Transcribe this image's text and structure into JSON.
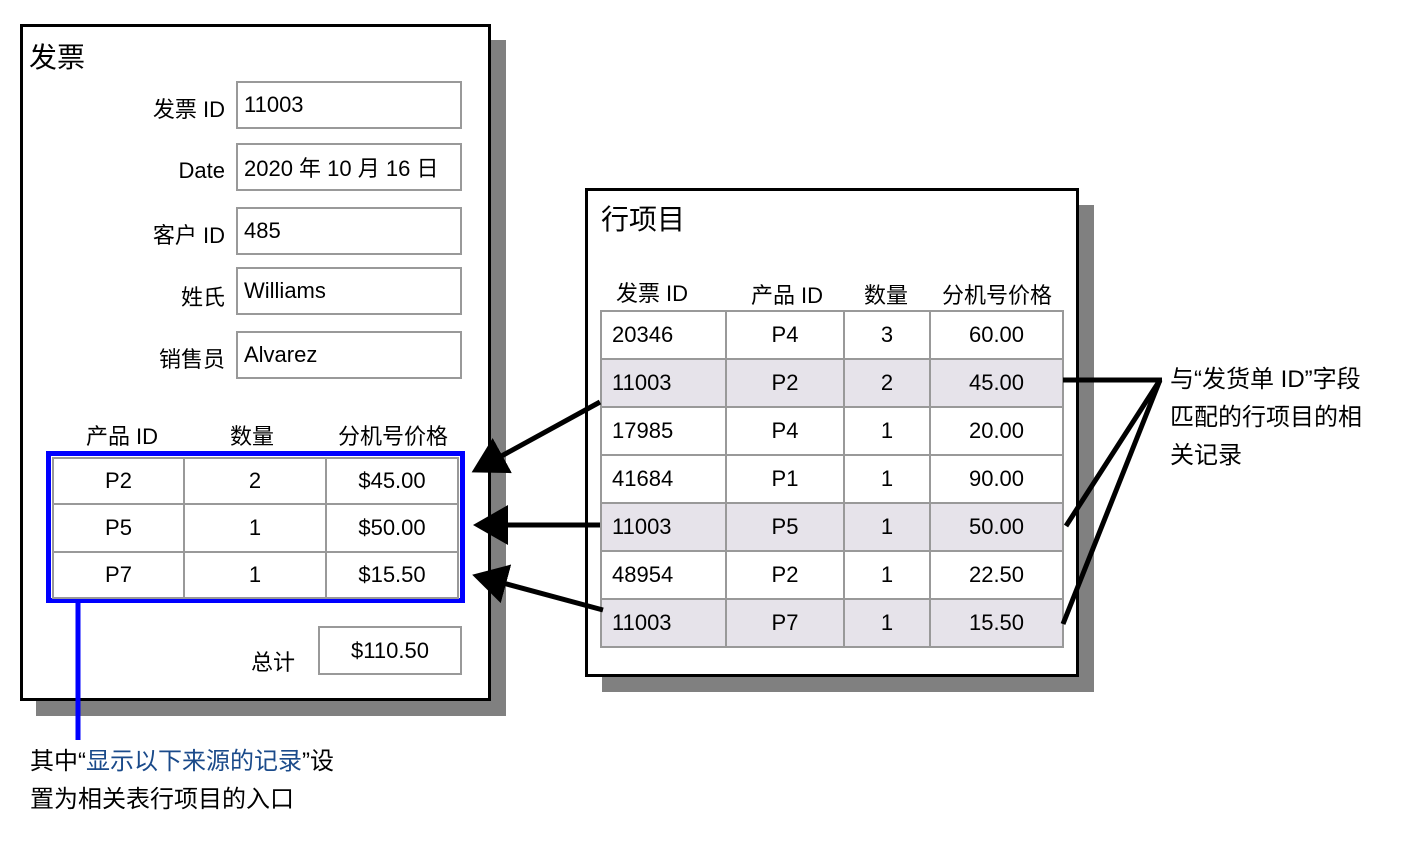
{
  "invoice": {
    "title": "发票",
    "fields": [
      {
        "label": "发票 ID",
        "value": "11003"
      },
      {
        "label": "Date",
        "value": "2020 年 10 月 16 日"
      },
      {
        "label": "客户 ID",
        "value": "485"
      },
      {
        "label": "姓氏",
        "value": "Williams"
      },
      {
        "label": "销售员",
        "value": "Alvarez"
      }
    ],
    "portal_headers": [
      "产品 ID",
      "数量",
      "分机号价格"
    ],
    "portal_rows": [
      [
        "P2",
        "2",
        "$45.00"
      ],
      [
        "P5",
        "1",
        "$50.00"
      ],
      [
        "P7",
        "1",
        "$15.50"
      ]
    ],
    "total_label": "总计",
    "total_value": "$110.50"
  },
  "line_items": {
    "title": "行项目",
    "headers": [
      "发票 ID",
      "产品 ID",
      "数量",
      "分机号价格"
    ],
    "rows": [
      [
        "20346",
        "P4",
        "3",
        "60.00"
      ],
      [
        "11003",
        "P2",
        "2",
        "45.00"
      ],
      [
        "17985",
        "P4",
        "1",
        "20.00"
      ],
      [
        "41684",
        "P1",
        "1",
        "90.00"
      ],
      [
        "11003",
        "P5",
        "1",
        "50.00"
      ],
      [
        "48954",
        "P2",
        "1",
        "22.50"
      ],
      [
        "11003",
        "P7",
        "1",
        "15.50"
      ]
    ],
    "highlight_color": "#e6e3ea"
  },
  "callouts": {
    "portal_note_pre": "其中“",
    "portal_note_highlight": "显示以下来源的记录",
    "portal_note_post": "”设",
    "portal_note_line2": "置为相关表行项目的入口",
    "match_note_line1": "与“发货单 ID”字段",
    "match_note_line2": "匹配的行项目的相",
    "match_note_line3": "关记录"
  },
  "colors": {
    "portal_border": "#0000ff",
    "shadow": "#808080",
    "note_highlight": "#1a4a8a"
  }
}
